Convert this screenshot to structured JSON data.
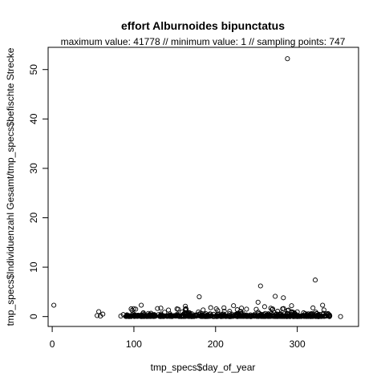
{
  "chart_data": {
    "type": "scatter",
    "title": "effort Alburnoides bipunctatus",
    "subtitle": "maximum value: 41778  //  minimum value: 1  // sampling points: 747",
    "xlabel": "tmp_specs$day_of_year",
    "ylabel": "tmp_specs$Individuenzahl Gesamt/tmp_specs$befischte Strecke",
    "xlim": [
      -5,
      375
    ],
    "ylim": [
      -2,
      54.5
    ],
    "x_ticks": [
      0,
      100,
      200,
      300
    ],
    "y_ticks": [
      0,
      10,
      20,
      30,
      40,
      50
    ],
    "grid": false,
    "marker": "open-circle",
    "outlier_points": [
      {
        "x": 2,
        "y": 2.3
      },
      {
        "x": 55,
        "y": 0.2
      },
      {
        "x": 57,
        "y": 1.0
      },
      {
        "x": 59,
        "y": 0.1
      },
      {
        "x": 62,
        "y": 0.5
      },
      {
        "x": 84,
        "y": 0.1
      },
      {
        "x": 87,
        "y": 0.4
      },
      {
        "x": 100,
        "y": 1.6
      },
      {
        "x": 109,
        "y": 2.3
      },
      {
        "x": 133,
        "y": 1.7
      },
      {
        "x": 163,
        "y": 2.1
      },
      {
        "x": 180,
        "y": 4.0
      },
      {
        "x": 194,
        "y": 1.8
      },
      {
        "x": 222,
        "y": 2.2
      },
      {
        "x": 252,
        "y": 2.9
      },
      {
        "x": 255,
        "y": 6.2
      },
      {
        "x": 260,
        "y": 2.0
      },
      {
        "x": 273,
        "y": 4.1
      },
      {
        "x": 283,
        "y": 3.8
      },
      {
        "x": 288,
        "y": 52.2
      },
      {
        "x": 293,
        "y": 2.2
      },
      {
        "x": 322,
        "y": 7.4
      },
      {
        "x": 331,
        "y": 2.3
      },
      {
        "x": 325,
        "y": 0.3
      },
      {
        "x": 335,
        "y": 0.1
      },
      {
        "x": 353,
        "y": 0.0
      }
    ],
    "dense_cluster": {
      "x_range": [
        90,
        340
      ],
      "y_range": [
        0,
        1.8
      ],
      "point_count": 721
    }
  }
}
